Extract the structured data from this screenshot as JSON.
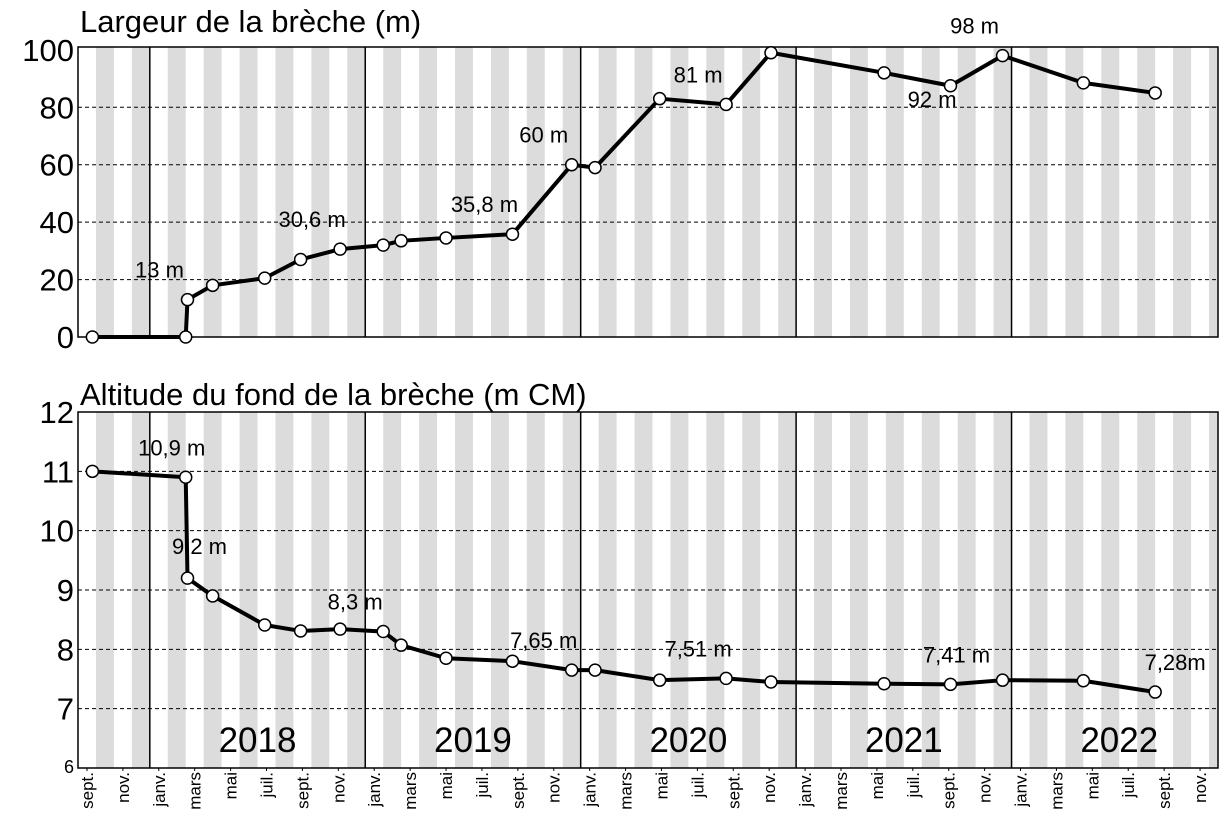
{
  "chart_data": [
    {
      "type": "line",
      "title": "Largeur de la brèche (m)",
      "x": [
        0.8,
        6.0,
        6.1,
        7.5,
        10.4,
        12.4,
        14.6,
        17.0,
        18.0,
        20.5,
        24.2,
        27.5,
        28.8,
        32.4,
        36.1,
        38.6,
        44.9,
        48.6,
        51.5,
        56.0,
        60.0
      ],
      "series": [
        {
          "color": "#000000",
          "values": [
            0,
            0,
            13,
            18,
            20.5,
            27,
            30.6,
            32,
            33.5,
            34.5,
            35.8,
            60,
            59,
            83,
            81,
            99,
            92,
            87.5,
            98,
            88.5,
            85
          ],
          "value_labels": [
            null,
            null,
            "13 m",
            null,
            null,
            null,
            "30,6 m",
            null,
            null,
            null,
            "35,8 m",
            "60 m",
            null,
            null,
            "81 m",
            null,
            "92 m",
            null,
            "98 m",
            null,
            null
          ]
        }
      ],
      "xlim": [
        0,
        63.5
      ],
      "ylim": [
        0,
        101
      ],
      "yticks": [
        0,
        20,
        40,
        60,
        80,
        100
      ],
      "year_starts": [
        4,
        16,
        28,
        40,
        52
      ],
      "grid": true
    },
    {
      "type": "line",
      "title": "Altitude du fond de la brèche (m CM)",
      "x": [
        0.8,
        6.0,
        6.1,
        7.5,
        10.4,
        12.4,
        14.6,
        17.0,
        18.0,
        20.5,
        24.2,
        27.5,
        28.8,
        32.4,
        36.1,
        38.6,
        44.9,
        48.6,
        51.5,
        56.0,
        60.0
      ],
      "series": [
        {
          "color": "#000000",
          "values": [
            11.0,
            10.9,
            9.2,
            8.9,
            8.41,
            8.31,
            8.34,
            8.3,
            8.07,
            7.85,
            7.8,
            7.65,
            7.65,
            7.48,
            7.51,
            7.45,
            7.42,
            7.41,
            7.48,
            7.47,
            7.28
          ],
          "value_labels": [
            null,
            "10,9 m",
            "9,2 m",
            null,
            null,
            null,
            null,
            "8,3 m",
            null,
            null,
            null,
            "7,65 m",
            null,
            null,
            "7,51 m",
            null,
            null,
            "7,41 m",
            null,
            null,
            "7,28m"
          ]
        }
      ],
      "xlim": [
        0,
        63.5
      ],
      "ylim": [
        6,
        12
      ],
      "yticks": [
        6,
        7,
        8,
        9,
        10,
        11,
        12
      ],
      "xticks": [
        {
          "value": 0.5,
          "label": "sept."
        },
        {
          "value": 2.5,
          "label": "nov."
        },
        {
          "value": 4.5,
          "label": "janv."
        },
        {
          "value": 6.5,
          "label": "mars"
        },
        {
          "value": 8.5,
          "label": "mai"
        },
        {
          "value": 10.5,
          "label": "juil."
        },
        {
          "value": 12.5,
          "label": "sept."
        },
        {
          "value": 14.5,
          "label": "nov."
        },
        {
          "value": 16.5,
          "label": "janv."
        },
        {
          "value": 18.5,
          "label": "mars"
        },
        {
          "value": 20.5,
          "label": "mai"
        },
        {
          "value": 22.5,
          "label": "juil."
        },
        {
          "value": 24.5,
          "label": "sept."
        },
        {
          "value": 26.5,
          "label": "nov."
        },
        {
          "value": 28.5,
          "label": "janv."
        },
        {
          "value": 30.5,
          "label": "mars"
        },
        {
          "value": 32.5,
          "label": "mai"
        },
        {
          "value": 34.5,
          "label": "juil."
        },
        {
          "value": 36.5,
          "label": "sept."
        },
        {
          "value": 38.5,
          "label": "nov."
        },
        {
          "value": 40.5,
          "label": "janv."
        },
        {
          "value": 42.5,
          "label": "mars"
        },
        {
          "value": 44.5,
          "label": "mai"
        },
        {
          "value": 46.5,
          "label": "juil."
        },
        {
          "value": 48.5,
          "label": "sept."
        },
        {
          "value": 50.5,
          "label": "nov."
        },
        {
          "value": 52.5,
          "label": "janv."
        },
        {
          "value": 54.5,
          "label": "mars"
        },
        {
          "value": 56.5,
          "label": "mai"
        },
        {
          "value": 58.5,
          "label": "juil."
        },
        {
          "value": 60.5,
          "label": "sept."
        },
        {
          "value": 62.5,
          "label": "nov."
        }
      ],
      "years": [
        {
          "label": "2018",
          "x": 4
        },
        {
          "label": "2019",
          "x": 16
        },
        {
          "label": "2020",
          "x": 28
        },
        {
          "label": "2021",
          "x": 40
        },
        {
          "label": "2022",
          "x": 52
        }
      ],
      "grid": true
    }
  ]
}
